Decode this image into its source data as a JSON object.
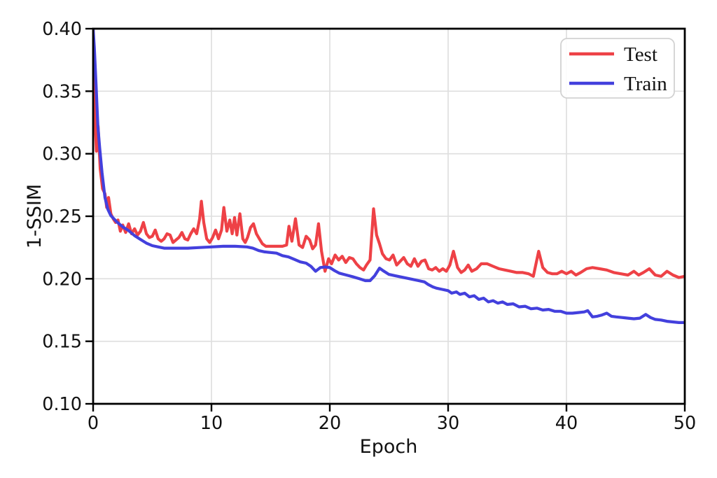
{
  "figure": {
    "background": "#ffffff"
  },
  "chart_data": {
    "type": "line",
    "title": "",
    "xlabel": "Epoch",
    "ylabel": "1-SSIM",
    "xlim": [
      0,
      50
    ],
    "ylim": [
      0.1,
      0.4
    ],
    "xticks": [
      0,
      10,
      20,
      30,
      40,
      50
    ],
    "xtick_labels": [
      "0",
      "10",
      "20",
      "30",
      "40",
      "50"
    ],
    "yticks": [
      0.1,
      0.15,
      0.2,
      0.25,
      0.3,
      0.35,
      0.4
    ],
    "ytick_labels": [
      "0.10",
      "0.15",
      "0.20",
      "0.25",
      "0.30",
      "0.35",
      "0.40"
    ],
    "grid": true,
    "grid_color": "#dedede",
    "axis_color": "#000000",
    "legend": {
      "position": "upper right",
      "entries": [
        "Test",
        "Train"
      ]
    },
    "series": [
      {
        "name": "Test",
        "color": "#ee4146",
        "x": [
          0,
          0.12,
          0.28,
          0.42,
          0.6,
          0.8,
          1.0,
          1.15,
          1.3,
          1.5,
          1.7,
          1.9,
          2.1,
          2.3,
          2.5,
          2.75,
          3.0,
          3.25,
          3.5,
          3.75,
          4.0,
          4.25,
          4.5,
          4.75,
          5.0,
          5.25,
          5.5,
          5.75,
          6.0,
          6.25,
          6.5,
          6.75,
          7.0,
          7.25,
          7.5,
          7.75,
          8.0,
          8.25,
          8.5,
          8.75,
          9.0,
          9.15,
          9.35,
          9.6,
          9.85,
          10.1,
          10.35,
          10.6,
          10.85,
          11.05,
          11.3,
          11.55,
          11.75,
          11.95,
          12.15,
          12.4,
          12.65,
          12.85,
          13.05,
          13.3,
          13.55,
          13.8,
          14.05,
          14.3,
          14.6,
          15.0,
          15.5,
          16.0,
          16.35,
          16.55,
          16.8,
          17.1,
          17.4,
          17.7,
          18.0,
          18.3,
          18.55,
          18.8,
          19.05,
          19.3,
          19.6,
          19.9,
          20.15,
          20.45,
          20.75,
          21.05,
          21.35,
          21.65,
          21.95,
          22.25,
          22.55,
          22.85,
          23.1,
          23.4,
          23.7,
          23.95,
          24.2,
          24.45,
          24.75,
          25.05,
          25.35,
          25.65,
          25.95,
          26.25,
          26.55,
          26.85,
          27.15,
          27.45,
          27.75,
          28.05,
          28.35,
          28.65,
          28.95,
          29.25,
          29.55,
          29.85,
          30.15,
          30.45,
          30.8,
          31.1,
          31.4,
          31.7,
          32.0,
          32.4,
          32.8,
          33.3,
          33.8,
          34.3,
          34.8,
          35.3,
          35.8,
          36.3,
          36.8,
          37.2,
          37.65,
          38.0,
          38.4,
          38.8,
          39.2,
          39.6,
          40.0,
          40.4,
          40.8,
          41.2,
          41.7,
          42.2,
          42.8,
          43.4,
          44.0,
          44.6,
          45.2,
          45.7,
          46.1,
          46.5,
          47.0,
          47.5,
          48.0,
          48.5,
          49.0,
          49.5,
          50.0
        ],
        "y": [
          0.4,
          0.335,
          0.302,
          0.322,
          0.288,
          0.272,
          0.268,
          0.257,
          0.265,
          0.252,
          0.248,
          0.245,
          0.247,
          0.238,
          0.243,
          0.237,
          0.244,
          0.236,
          0.24,
          0.235,
          0.238,
          0.245,
          0.236,
          0.233,
          0.234,
          0.239,
          0.232,
          0.23,
          0.232,
          0.236,
          0.235,
          0.229,
          0.231,
          0.233,
          0.237,
          0.232,
          0.231,
          0.236,
          0.24,
          0.236,
          0.248,
          0.262,
          0.245,
          0.232,
          0.229,
          0.233,
          0.239,
          0.232,
          0.239,
          0.257,
          0.238,
          0.247,
          0.236,
          0.249,
          0.235,
          0.252,
          0.232,
          0.229,
          0.233,
          0.241,
          0.244,
          0.236,
          0.232,
          0.228,
          0.226,
          0.226,
          0.226,
          0.226,
          0.227,
          0.242,
          0.23,
          0.248,
          0.227,
          0.225,
          0.234,
          0.231,
          0.224,
          0.227,
          0.244,
          0.222,
          0.206,
          0.216,
          0.212,
          0.219,
          0.215,
          0.218,
          0.213,
          0.217,
          0.216,
          0.212,
          0.209,
          0.207,
          0.211,
          0.215,
          0.256,
          0.235,
          0.228,
          0.22,
          0.216,
          0.215,
          0.219,
          0.211,
          0.214,
          0.217,
          0.212,
          0.21,
          0.216,
          0.21,
          0.214,
          0.215,
          0.208,
          0.207,
          0.209,
          0.206,
          0.208,
          0.206,
          0.211,
          0.222,
          0.209,
          0.205,
          0.207,
          0.211,
          0.206,
          0.208,
          0.212,
          0.212,
          0.21,
          0.208,
          0.207,
          0.206,
          0.205,
          0.205,
          0.204,
          0.202,
          0.222,
          0.209,
          0.205,
          0.204,
          0.204,
          0.206,
          0.204,
          0.206,
          0.203,
          0.205,
          0.208,
          0.209,
          0.208,
          0.207,
          0.205,
          0.204,
          0.203,
          0.206,
          0.203,
          0.205,
          0.208,
          0.203,
          0.202,
          0.206,
          0.203,
          0.201,
          0.202
        ]
      },
      {
        "name": "Train",
        "color": "#4340dd",
        "x": [
          0,
          0.1,
          0.25,
          0.4,
          0.55,
          0.75,
          1.0,
          1.25,
          1.5,
          1.75,
          2.0,
          2.5,
          3.0,
          3.5,
          4.0,
          4.5,
          5.0,
          5.5,
          6.0,
          7.0,
          8.0,
          9.0,
          10.0,
          11.0,
          12.0,
          13.0,
          13.5,
          14.0,
          14.5,
          15.0,
          15.5,
          16.0,
          16.5,
          17.0,
          17.5,
          18.0,
          18.4,
          18.8,
          19.2,
          19.6,
          20.0,
          20.4,
          20.8,
          21.2,
          21.6,
          22.0,
          22.5,
          23.0,
          23.4,
          23.8,
          24.2,
          24.5,
          25.0,
          25.5,
          26.0,
          26.5,
          27.0,
          27.5,
          28.0,
          28.3,
          28.7,
          29.0,
          29.5,
          30.0,
          30.3,
          30.7,
          31.0,
          31.4,
          31.8,
          32.2,
          32.6,
          33.0,
          33.4,
          33.8,
          34.2,
          34.6,
          35.0,
          35.5,
          36.0,
          36.5,
          37.0,
          37.5,
          38.0,
          38.5,
          39.0,
          39.5,
          40.0,
          40.5,
          41.0,
          41.5,
          41.8,
          42.2,
          42.6,
          43.0,
          43.4,
          43.8,
          44.2,
          44.7,
          45.2,
          45.7,
          46.2,
          46.7,
          47.1,
          47.5,
          48.0,
          48.5,
          49.0,
          49.5,
          50.0
        ],
        "y": [
          0.4,
          0.385,
          0.355,
          0.322,
          0.305,
          0.285,
          0.265,
          0.2555,
          0.2505,
          0.248,
          0.2455,
          0.2415,
          0.2385,
          0.2345,
          0.2315,
          0.2285,
          0.2265,
          0.2255,
          0.2245,
          0.2245,
          0.2245,
          0.225,
          0.2255,
          0.226,
          0.226,
          0.2255,
          0.2245,
          0.2225,
          0.2215,
          0.221,
          0.2205,
          0.2185,
          0.2175,
          0.2155,
          0.2135,
          0.2125,
          0.21,
          0.206,
          0.209,
          0.2095,
          0.209,
          0.2065,
          0.2045,
          0.2035,
          0.2025,
          0.2015,
          0.2,
          0.1985,
          0.1985,
          0.2025,
          0.2085,
          0.2065,
          0.2035,
          0.2025,
          0.2015,
          0.2005,
          0.1995,
          0.1985,
          0.1975,
          0.1955,
          0.1935,
          0.1925,
          0.1915,
          0.1905,
          0.1885,
          0.1895,
          0.1875,
          0.1885,
          0.1855,
          0.1865,
          0.1835,
          0.1845,
          0.1815,
          0.1825,
          0.1805,
          0.1815,
          0.1795,
          0.18,
          0.1775,
          0.178,
          0.176,
          0.1765,
          0.175,
          0.1755,
          0.174,
          0.174,
          0.1725,
          0.1725,
          0.173,
          0.1735,
          0.1745,
          0.1695,
          0.17,
          0.171,
          0.1725,
          0.17,
          0.1695,
          0.169,
          0.1685,
          0.168,
          0.1685,
          0.1715,
          0.169,
          0.1675,
          0.167,
          0.166,
          0.1655,
          0.165,
          0.165
        ]
      }
    ]
  }
}
